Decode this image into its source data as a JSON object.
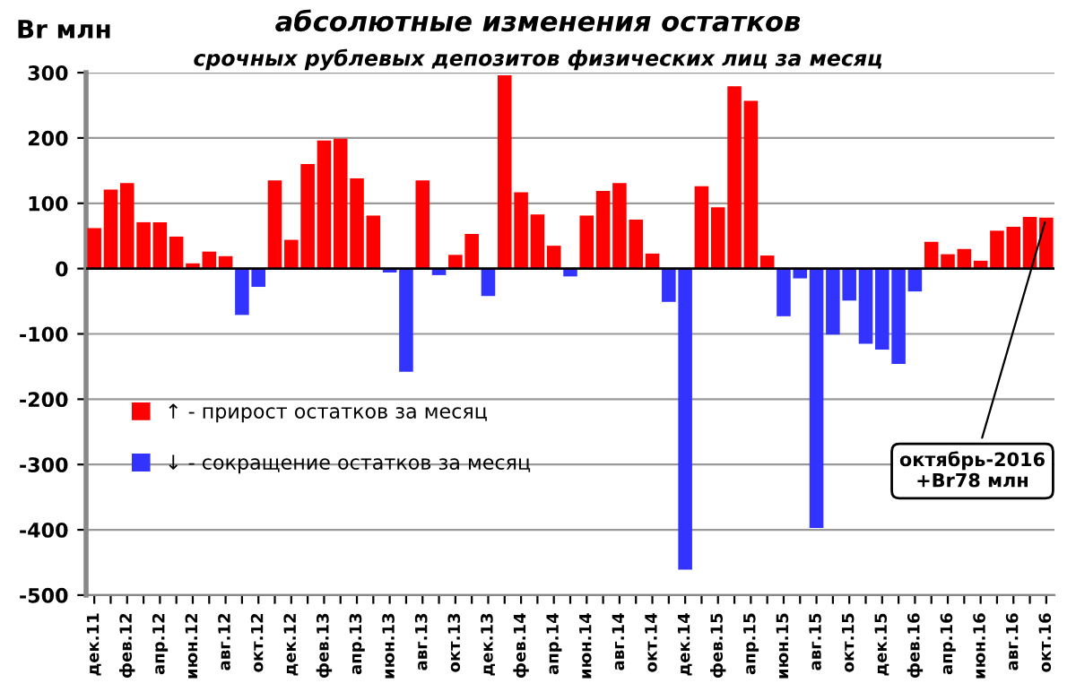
{
  "chart_data": {
    "type": "bar",
    "title": "абсолютные изменения остатков",
    "subtitle": "срочных рублевых депозитов физических лиц за месяц",
    "ylabel": "Br млн",
    "categories": [
      "дек.11",
      null,
      "фев.12",
      null,
      "апр.12",
      null,
      "июн.12",
      null,
      "авг.12",
      null,
      "окт.12",
      null,
      "дек.12",
      null,
      "фев.13",
      null,
      "апр.13",
      null,
      "июн.13",
      null,
      "авг.13",
      null,
      "окт.13",
      null,
      "дек.13",
      null,
      "фев.14",
      null,
      "апр.14",
      null,
      "июн.14",
      null,
      "авг.14",
      null,
      "окт.14",
      null,
      "дек.14",
      null,
      "фев.15",
      null,
      "апр.15",
      null,
      "июн.15",
      null,
      "авг.15",
      null,
      "окт.15",
      null,
      "дек.15",
      null,
      "фев.16",
      null,
      "апр.16",
      null,
      "июн.16",
      null,
      "авг.16",
      null,
      "окт.16"
    ],
    "series": [
      {
        "name": "↑ - прирост остатков за месяц",
        "color": "#ff0000",
        "values": [
          62,
          121,
          131,
          71,
          71,
          49,
          8,
          26,
          19,
          null,
          null,
          135,
          44,
          160,
          196,
          199,
          138,
          81,
          null,
          null,
          135,
          null,
          21,
          53,
          null,
          296,
          117,
          83,
          35,
          null,
          81,
          119,
          131,
          75,
          23,
          null,
          null,
          126,
          94,
          279,
          257,
          20,
          null,
          null,
          null,
          null,
          null,
          null,
          null,
          null,
          null,
          41,
          22,
          30,
          12,
          58,
          64,
          79,
          78
        ]
      },
      {
        "name": "↓ - сокращение остатков за месяц",
        "color": "#3333ff",
        "values": [
          null,
          null,
          null,
          null,
          null,
          null,
          null,
          null,
          null,
          -71,
          -28,
          null,
          null,
          null,
          null,
          null,
          null,
          null,
          -6,
          -158,
          null,
          -10,
          null,
          null,
          -42,
          null,
          null,
          null,
          null,
          -12,
          null,
          null,
          null,
          null,
          null,
          -51,
          -461,
          null,
          null,
          null,
          null,
          null,
          -73,
          -15,
          -397,
          -101,
          -49,
          -115,
          -124,
          -146,
          -35,
          null,
          null,
          null,
          null,
          null,
          null,
          null,
          null
        ]
      }
    ],
    "ylim": [
      -500,
      300
    ],
    "yticks": [
      -500,
      -400,
      -300,
      -200,
      -100,
      0,
      100,
      200,
      300
    ],
    "grid": "y",
    "legend": "left",
    "annotations": [
      {
        "text": "октябрь-2016\n+Br78 млн",
        "x": "окт.16",
        "y": 78
      }
    ]
  }
}
